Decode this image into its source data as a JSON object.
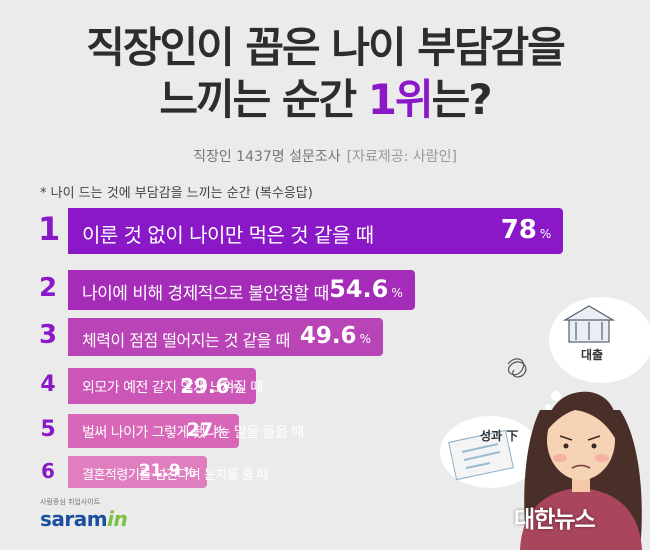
{
  "title": {
    "line1": "직장인이 꼽은 나이 부담감을",
    "line2_prefix": "느끼는 순간 ",
    "line2_highlight": "1위",
    "line2_suffix": "는?"
  },
  "subtitle": {
    "survey": "직장인 1437명 설문조사",
    "source": "[자료제공: 사람인]"
  },
  "chart_data": {
    "type": "bar",
    "orientation": "horizontal",
    "title": "* 나이 드는 것에 부담감을 느끼는 순간 (복수응답)",
    "unit": "%",
    "ranks": [
      "1",
      "2",
      "3",
      "4",
      "5",
      "6"
    ],
    "categories": [
      "이룬 것 없이 나이만 먹은 것 같을 때",
      "나이에 비해 경제적으로 불안정할 때",
      "체력이 점점 떨어지는 것 같을 때",
      "외모가 예전 같지 않게 느껴질 때",
      "벌써 나이가 그렇게 됐냐는 말을 들을 때",
      "결혼적령기를 넘긴다며 눈치를 줄 때"
    ],
    "values": [
      78,
      54.6,
      49.6,
      29.6,
      27,
      21.9
    ],
    "value_labels": [
      "78",
      "54.6",
      "49.6",
      "29.6",
      "27",
      "21.9"
    ],
    "bar_colors": [
      "#8a18c6",
      "#a42cb8",
      "#b944b6",
      "#cc55b8",
      "#d866b9",
      "#e07fc0"
    ]
  },
  "illustration": {
    "bubble_bank": "대출",
    "bubble_paper": "성과 下"
  },
  "logo": {
    "tagline": "사람중심 취업사이트",
    "name_main": "saram",
    "name_accent": "in"
  },
  "watermark": "대한뉴스"
}
